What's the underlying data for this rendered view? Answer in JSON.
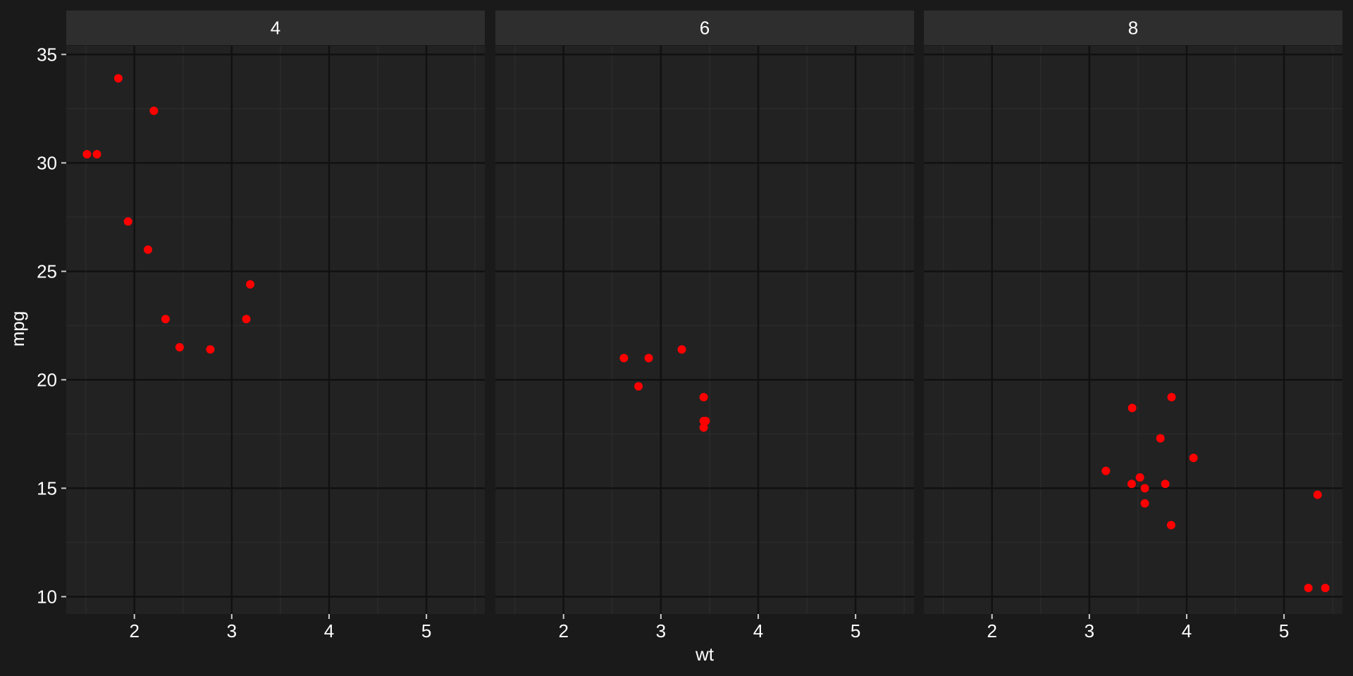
{
  "chart_data": {
    "type": "scatter",
    "facet_variable": "cyl",
    "xlabel": "wt",
    "ylabel": "mpg",
    "xlim": [
      1.3,
      5.6
    ],
    "ylim": [
      9.2,
      35.4
    ],
    "x_ticks": [
      2,
      3,
      4,
      5
    ],
    "x_tick_labels": [
      "2",
      "3",
      "4",
      "5"
    ],
    "y_ticks": [
      10,
      15,
      20,
      25,
      30,
      35
    ],
    "y_tick_labels": [
      "10",
      "15",
      "20",
      "25",
      "30",
      "35"
    ],
    "grid": true,
    "colors": {
      "background": "#1a1a1a",
      "panel": "#222222",
      "strip": "#2e2e2e",
      "grid_major": "#111111",
      "grid_minor": "#2b2b2b",
      "text": "#ffffff",
      "point": "#ff0000"
    },
    "panels": [
      {
        "label": "4",
        "points": [
          {
            "x": 2.32,
            "y": 22.8
          },
          {
            "x": 3.19,
            "y": 24.4
          },
          {
            "x": 3.15,
            "y": 22.8
          },
          {
            "x": 2.2,
            "y": 32.4
          },
          {
            "x": 1.615,
            "y": 30.4
          },
          {
            "x": 1.835,
            "y": 33.9
          },
          {
            "x": 2.465,
            "y": 21.5
          },
          {
            "x": 1.935,
            "y": 27.3
          },
          {
            "x": 2.14,
            "y": 26.0
          },
          {
            "x": 1.513,
            "y": 30.4
          },
          {
            "x": 2.78,
            "y": 21.4
          }
        ]
      },
      {
        "label": "6",
        "points": [
          {
            "x": 2.62,
            "y": 21.0
          },
          {
            "x": 2.875,
            "y": 21.0
          },
          {
            "x": 3.215,
            "y": 21.4
          },
          {
            "x": 3.44,
            "y": 18.1
          },
          {
            "x": 3.44,
            "y": 19.2
          },
          {
            "x": 3.44,
            "y": 17.8
          },
          {
            "x": 2.77,
            "y": 19.7
          },
          {
            "x": 3.46,
            "y": 18.1
          }
        ]
      },
      {
        "label": "8",
        "points": [
          {
            "x": 3.44,
            "y": 18.7
          },
          {
            "x": 3.57,
            "y": 14.3
          },
          {
            "x": 4.07,
            "y": 16.4
          },
          {
            "x": 3.73,
            "y": 17.3
          },
          {
            "x": 3.78,
            "y": 15.2
          },
          {
            "x": 5.25,
            "y": 10.4
          },
          {
            "x": 5.424,
            "y": 10.4
          },
          {
            "x": 5.345,
            "y": 14.7
          },
          {
            "x": 3.52,
            "y": 15.5
          },
          {
            "x": 3.435,
            "y": 15.2
          },
          {
            "x": 3.84,
            "y": 13.3
          },
          {
            "x": 3.845,
            "y": 19.2
          },
          {
            "x": 3.17,
            "y": 15.8
          },
          {
            "x": 3.57,
            "y": 15.0
          }
        ]
      }
    ]
  }
}
